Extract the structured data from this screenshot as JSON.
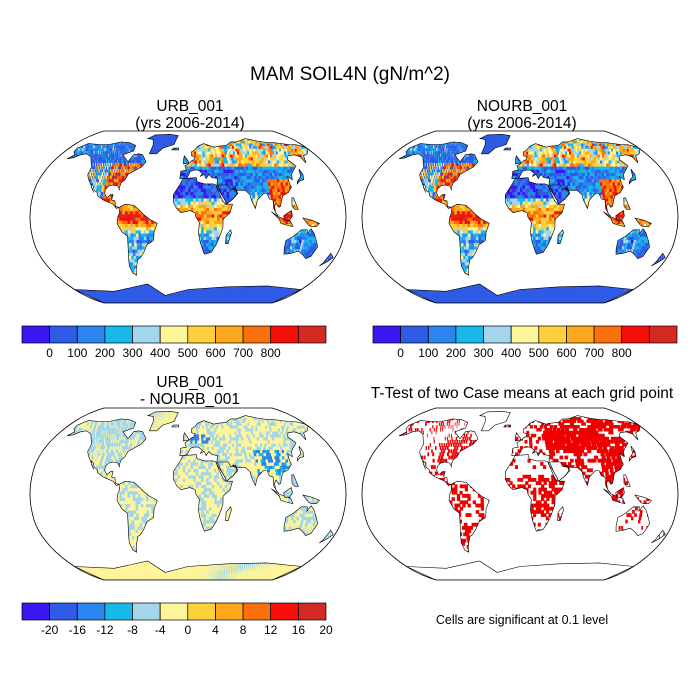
{
  "figure": {
    "title": "MAM SOIL4N (gN/m^2)"
  },
  "panels": [
    {
      "id": "urb",
      "title_line1": "URB_001",
      "title_line2": "(yrs 2006-2014)",
      "field": "absolute"
    },
    {
      "id": "nourb",
      "title_line1": "NOURB_001",
      "title_line2": "(yrs 2006-2014)",
      "field": "absolute"
    },
    {
      "id": "diff",
      "title_line1": "URB_001",
      "title_line2": "- NOURB_001",
      "field": "difference"
    },
    {
      "id": "ttest",
      "title_line1": "T-Test of two Case means at each grid point",
      "title_line2": "",
      "field": "significance",
      "note": "Cells are significant at 0.1 level"
    }
  ],
  "colorbars": {
    "absolute": {
      "colors": [
        "#3a16f0",
        "#2f5be6",
        "#2a86ee",
        "#18b8ea",
        "#a3d6ec",
        "#fef59a",
        "#fdd03c",
        "#fda71c",
        "#fb6f0c",
        "#f71009",
        "#d42a24"
      ],
      "tick_labels": [
        "0",
        "100",
        "200",
        "300",
        "400",
        "500",
        "600",
        "700",
        "800"
      ]
    },
    "difference": {
      "colors": [
        "#3a16f0",
        "#2f5be6",
        "#2a86ee",
        "#18b8ea",
        "#a3d6ec",
        "#fef59a",
        "#fdd03c",
        "#fda71c",
        "#fb6f0c",
        "#f71009",
        "#d42a24"
      ],
      "tick_labels": [
        "-20",
        "-16",
        "-12",
        "-8",
        "-4",
        "0",
        "4",
        "8",
        "12",
        "16",
        "20"
      ]
    }
  },
  "map_colors": {
    "ocean": "#ffffff",
    "coast": "#000000",
    "significant": "#ee0000"
  }
}
